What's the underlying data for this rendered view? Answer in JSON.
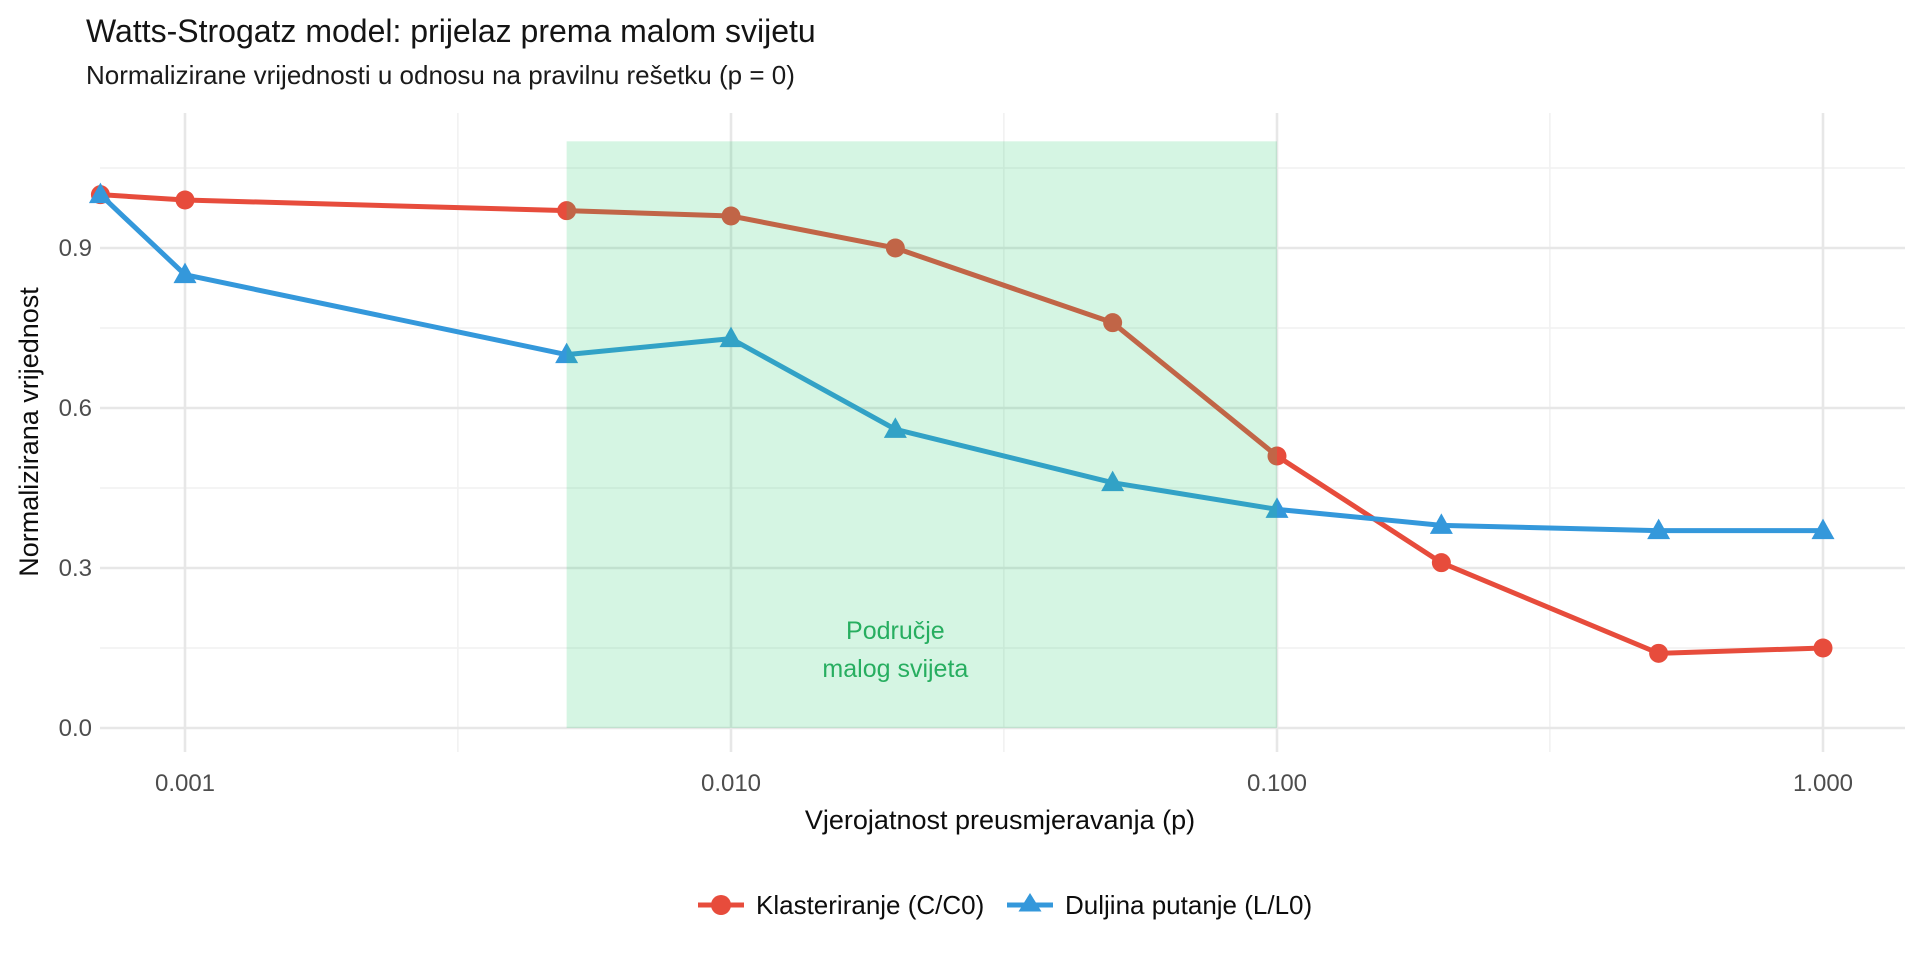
{
  "chart_data": {
    "type": "line",
    "title": "Watts-Strogatz model: prijelaz prema malom svijetu",
    "subtitle": "Normalizirane vrijednosti u odnosu na pravilnu rešetku (p = 0)",
    "x_axis": {
      "label": "Vjerojatnost preusmjeravanja (p)",
      "scale": "log10",
      "tick_values": [
        0.001,
        0.01,
        0.1,
        1
      ],
      "tick_labels": [
        "0.001",
        "0.010",
        "0.100",
        "1.000"
      ],
      "minor_tick_values": [
        0.00316,
        0.0316,
        0.316
      ],
      "range": [
        0.0007,
        1.0
      ]
    },
    "y_axis": {
      "label": "Normalizirana vrijednost",
      "tick_values": [
        0.0,
        0.3,
        0.6,
        0.9
      ],
      "tick_labels": [
        "0.0",
        "0.3",
        "0.6",
        "0.9"
      ],
      "minor_tick_values": [
        0.15,
        0.45,
        0.75,
        1.05
      ],
      "range": [
        0.0,
        1.05
      ]
    },
    "x": [
      0.0007,
      0.001,
      0.005,
      0.01,
      0.02,
      0.05,
      0.1,
      0.2,
      0.5,
      1.0
    ],
    "series": [
      {
        "name": "Klasteriranje (C/C0)",
        "marker": "circle",
        "color": "#e74c3c",
        "values": [
          1.0,
          0.99,
          0.97,
          0.96,
          0.9,
          0.76,
          0.51,
          0.31,
          0.14,
          0.15
        ]
      },
      {
        "name": "Duljina putanje (L/L0)",
        "marker": "triangle",
        "color": "#3498db",
        "values": [
          1.0,
          0.85,
          0.7,
          0.73,
          0.56,
          0.46,
          0.41,
          0.38,
          0.37,
          0.37
        ]
      }
    ],
    "region": {
      "x_from": 0.005,
      "x_to": 0.1,
      "y_from": 0.0,
      "y_to": 1.1,
      "fill": "#2ecc71",
      "opacity": 0.2,
      "label_lines": [
        "Područje",
        "malog svijeta"
      ],
      "label_color": "#27ae60",
      "label_x": 0.02
    },
    "grid": true,
    "legend_position": "bottom",
    "colors": {
      "grid_major": "#e7e7e7",
      "grid_minor": "#f2f2f2",
      "tick_text": "#4d4d4d",
      "background": "#ffffff"
    }
  }
}
